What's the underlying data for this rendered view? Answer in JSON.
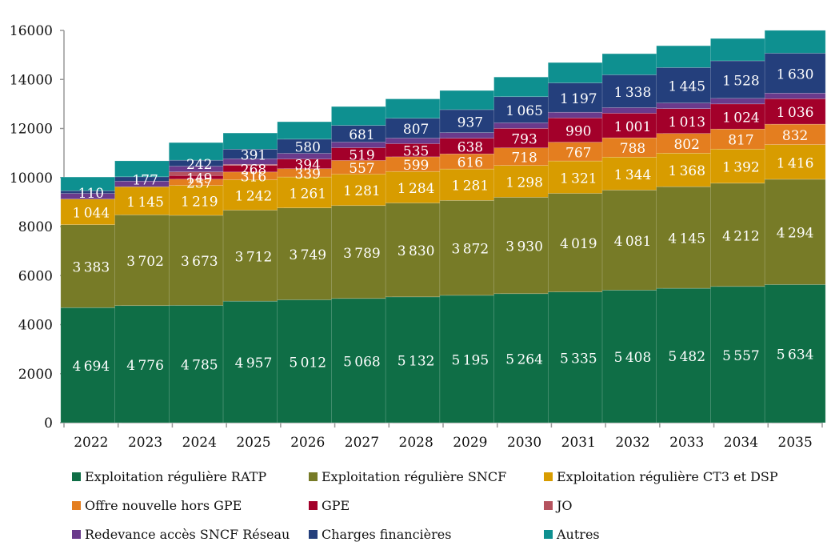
{
  "chart_data": {
    "type": "bar",
    "stacked": true,
    "title": "",
    "xlabel": "",
    "ylabel": "",
    "ylim": [
      0,
      16000
    ],
    "yticks": [
      0,
      2000,
      4000,
      6000,
      8000,
      10000,
      12000,
      14000,
      16000
    ],
    "grid": false,
    "legend_position": "bottom",
    "categories": [
      "2022",
      "2023",
      "2024",
      "2025",
      "2026",
      "2027",
      "2028",
      "2029",
      "2030",
      "2031",
      "2032",
      "2033",
      "2034",
      "2035"
    ],
    "series": [
      {
        "name": "Exploitation régulière RATP",
        "color": "#0f6e46",
        "labeled": true,
        "values": [
          4694,
          4776,
          4785,
          4957,
          5012,
          5068,
          5132,
          5195,
          5264,
          5335,
          5408,
          5482,
          5557,
          5634
        ]
      },
      {
        "name": "Exploitation régulière SNCF",
        "color": "#777b27",
        "labeled": true,
        "values": [
          3383,
          3702,
          3673,
          3712,
          3749,
          3789,
          3830,
          3872,
          3930,
          4019,
          4081,
          4145,
          4212,
          4294
        ]
      },
      {
        "name": "Exploitation régulière CT3 et DSP",
        "color": "#d89c00",
        "labeled": true,
        "values": [
          1044,
          1145,
          1219,
          1242,
          1261,
          1281,
          1284,
          1281,
          1298,
          1321,
          1344,
          1368,
          1392,
          1416
        ]
      },
      {
        "name": "Offre nouvelle hors GPE",
        "color": "#e47e1f",
        "labeled": true,
        "values": [
          0,
          0,
          257,
          316,
          339,
          557,
          599,
          616,
          718,
          767,
          788,
          802,
          817,
          832
        ]
      },
      {
        "name": "GPE",
        "color": "#a3002a",
        "labeled": true,
        "values": [
          0,
          0,
          149,
          268,
          394,
          519,
          535,
          638,
          793,
          990,
          1001,
          1013,
          1024,
          1036
        ]
      },
      {
        "name": "JO",
        "color": "#b5525e",
        "labeled": false,
        "values": [
          0,
          0,
          150,
          40,
          0,
          0,
          0,
          0,
          0,
          0,
          0,
          0,
          0,
          0
        ]
      },
      {
        "name": "Redevance accès SNCF Réseau",
        "color": "#6a3a8c",
        "labeled": false,
        "values": [
          230,
          230,
          230,
          230,
          230,
          230,
          230,
          230,
          230,
          230,
          230,
          230,
          230,
          230
        ]
      },
      {
        "name": "Charges financières",
        "color": "#243f7c",
        "labeled": true,
        "values": [
          110,
          177,
          242,
          391,
          580,
          681,
          807,
          937,
          1065,
          1197,
          1338,
          1445,
          1528,
          1630
        ]
      },
      {
        "name": "Autres",
        "color": "#0e9090",
        "labeled": false,
        "values": [
          560,
          650,
          720,
          660,
          710,
          770,
          790,
          780,
          800,
          830,
          860,
          890,
          910,
          930
        ]
      }
    ]
  }
}
